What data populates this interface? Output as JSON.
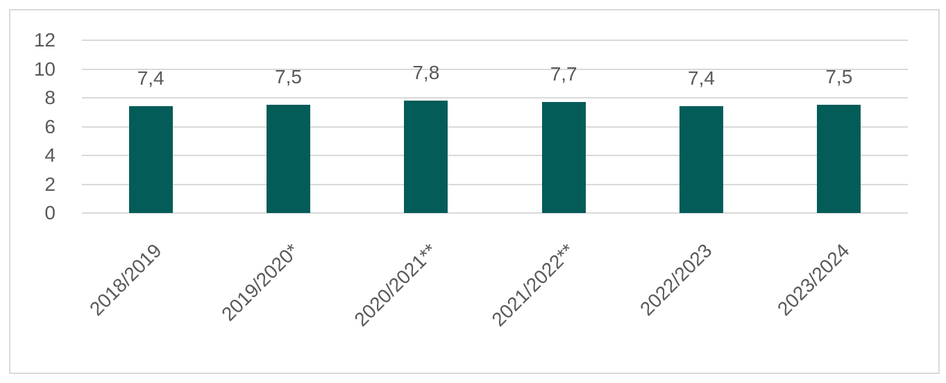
{
  "chart_data": {
    "type": "bar",
    "title": "",
    "xlabel": "",
    "ylabel": "",
    "categories": [
      "2018/2019",
      "2019/2020*",
      "2020/2021**",
      "2021/2022**",
      "2022/2023",
      "2023/2024"
    ],
    "values": [
      7.4,
      7.5,
      7.8,
      7.7,
      7.4,
      7.5
    ],
    "value_labels": [
      "7,4",
      "7,5",
      "7,8",
      "7,7",
      "7,4",
      "7,5"
    ],
    "ylim": [
      0,
      12
    ],
    "yticks": [
      0,
      2,
      4,
      6,
      8,
      10,
      12
    ],
    "ytick_labels": [
      "0",
      "2",
      "4",
      "6",
      "8",
      "10",
      "12"
    ],
    "grid": "horizontal",
    "legend_position": "none",
    "decimal_separator": ",",
    "colors": {
      "bar": "#045C59",
      "text": "#595959",
      "gridline": "#D9D9D9",
      "frame_border": "#D9D9D9",
      "background": "#FFFFFF"
    }
  }
}
